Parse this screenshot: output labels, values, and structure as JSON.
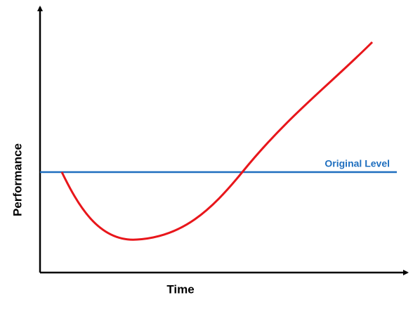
{
  "y_axis_label": "Performance",
  "x_axis_label": "Time",
  "reference_line_label": "Original Level"
}
